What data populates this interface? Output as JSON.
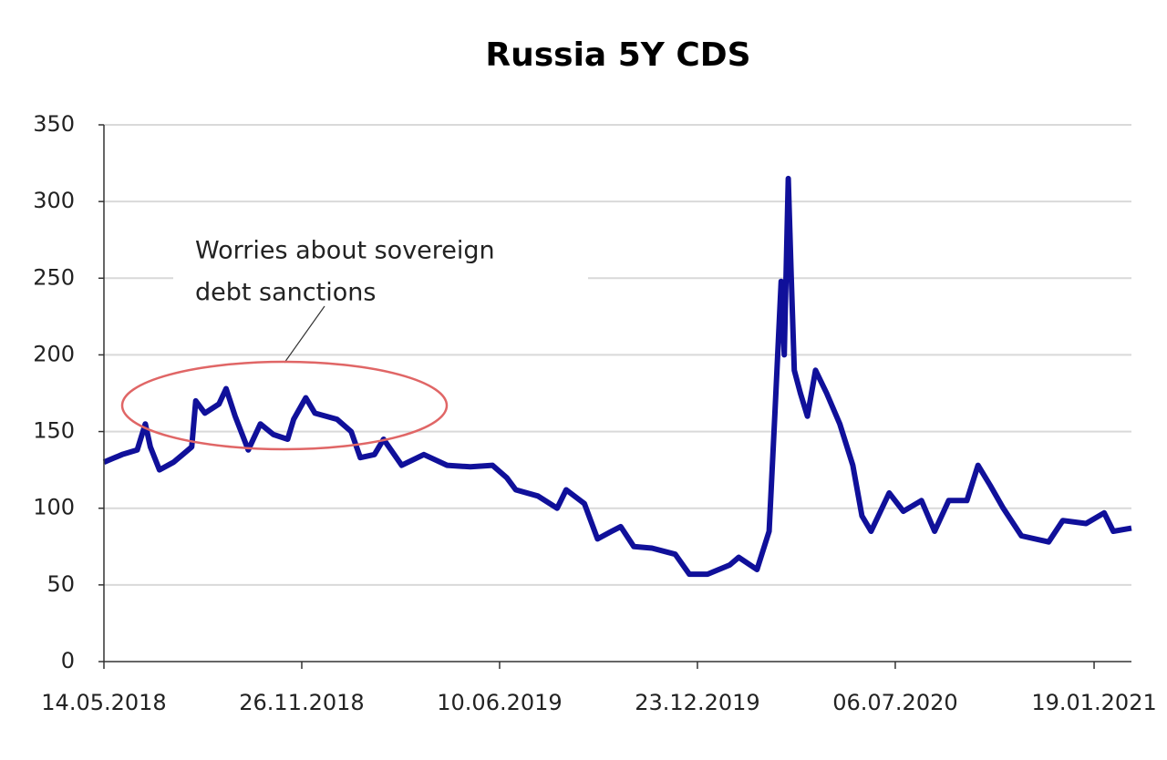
{
  "chart_data": {
    "type": "line",
    "title": "Russia 5Y CDS",
    "annotation": [
      "Worries about sovereign",
      "debt sanctions"
    ],
    "x": [
      "14.05.2018",
      "01.06.2018",
      "16.06.2018",
      "24.06.2018",
      "29.06.2018",
      "08.07.2018",
      "22.07.2018",
      "31.07.2018",
      "09.08.2018",
      "13.08.2018",
      "22.08.2018",
      "05.09.2018",
      "12.09.2018",
      "21.09.2018",
      "04.10.2018",
      "16.10.2018",
      "29.10.2018",
      "12.11.2018",
      "18.11.2018",
      "30.11.2018",
      "09.12.2018",
      "31.12.2018",
      "14.01.2019",
      "23.01.2019",
      "06.02.2019",
      "15.02.2019",
      "05.03.2019",
      "27.03.2019",
      "19.04.2019",
      "12.05.2019",
      "03.06.2019",
      "17.06.2019",
      "26.06.2019",
      "18.07.2019",
      "06.08.2019",
      "15.08.2019",
      "02.09.2019",
      "15.09.2019",
      "29.09.2019",
      "08.10.2019",
      "21.10.2019",
      "08.11.2019",
      "01.12.2019",
      "15.12.2019",
      "02.01.2020",
      "24.01.2020",
      "02.02.2020",
      "20.02.2020",
      "03.03.2020",
      "09.03.2020",
      "15.03.2020",
      "18.03.2020",
      "22.03.2020",
      "25.03.2020",
      "28.03.2020",
      "03.04.2020",
      "10.04.2020",
      "18.04.2020",
      "29.04.2020",
      "12.05.2020",
      "25.05.2020",
      "03.06.2020",
      "12.06.2020",
      "30.06.2020",
      "14.07.2020",
      "01.08.2020",
      "14.08.2020",
      "28.08.2020",
      "15.09.2020",
      "26.09.2020",
      "08.10.2020",
      "21.10.2020",
      "08.11.2020",
      "05.12.2020",
      "19.12.2020",
      "11.01.2021",
      "29.01.2021",
      "07.02.2021",
      "25.02.2021"
    ],
    "series": [
      {
        "name": "Russia 5Y CDS",
        "color": "#10109a",
        "values": [
          130,
          135,
          138,
          155,
          140,
          125,
          130,
          135,
          140,
          170,
          162,
          168,
          178,
          160,
          138,
          155,
          148,
          145,
          158,
          172,
          162,
          158,
          150,
          133,
          135,
          145,
          128,
          135,
          128,
          127,
          128,
          120,
          112,
          108,
          100,
          112,
          103,
          80,
          85,
          88,
          75,
          74,
          70,
          57,
          57,
          63,
          68,
          60,
          85,
          165,
          248,
          200,
          315,
          250,
          190,
          175,
          160,
          190,
          175,
          155,
          128,
          95,
          85,
          110,
          98,
          105,
          85,
          105,
          105,
          128,
          115,
          100,
          82,
          78,
          92,
          90,
          97,
          85,
          87
        ]
      }
    ],
    "xlim": [
      "14.05.2018",
      "25.02.2021"
    ],
    "xticks": [
      "14.05.2018",
      "26.11.2018",
      "10.06.2019",
      "23.12.2019",
      "06.07.2020",
      "19.01.2021"
    ],
    "ylim": [
      0,
      350
    ],
    "yticks": [
      0,
      50,
      100,
      150,
      200,
      250,
      300,
      350
    ],
    "grid": true
  }
}
